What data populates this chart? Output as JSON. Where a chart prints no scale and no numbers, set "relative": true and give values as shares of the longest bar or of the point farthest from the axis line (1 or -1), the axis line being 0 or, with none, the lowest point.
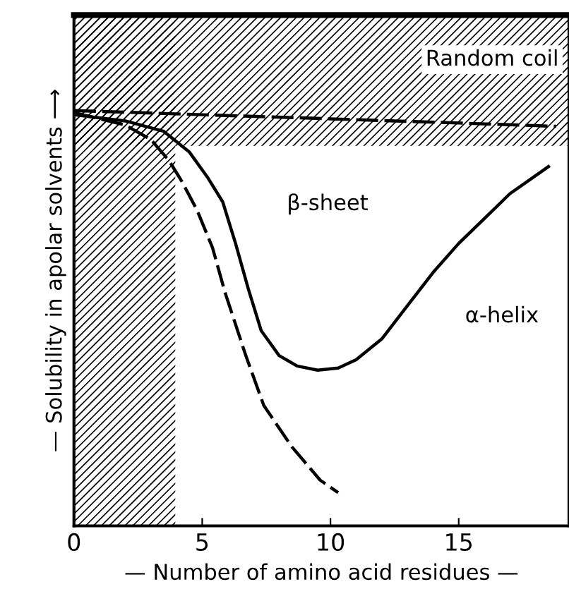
{
  "chart_data": {
    "type": "line",
    "relative": true,
    "xlabel": "— Number of amino acid residues —",
    "ylabel": "— Solubility in apolar solvents ⟶",
    "xlim": [
      0,
      19.3
    ],
    "xticks": [
      0,
      5,
      10,
      15
    ],
    "tick_labels": "x",
    "grid": false,
    "legend": false,
    "marker": "none",
    "series": [
      {
        "color": "#000000",
        "line_style": "dashed",
        "x": [
          0,
          5,
          10,
          15,
          18.8
        ],
        "values": [
          1.0,
          0.99,
          0.98,
          0.97,
          0.962
        ]
      },
      {
        "color": "#000000",
        "line_style": "solid",
        "x": [
          0,
          2,
          3.5,
          4.5,
          5.2,
          5.8,
          6.3,
          6.8,
          7.3,
          8,
          8.7,
          9.5,
          10.3,
          11,
          12,
          13,
          14,
          15,
          16,
          17,
          18.5
        ],
        "values": [
          0.99,
          0.975,
          0.95,
          0.9,
          0.84,
          0.78,
          0.68,
          0.57,
          0.47,
          0.41,
          0.385,
          0.375,
          0.38,
          0.4,
          0.45,
          0.53,
          0.61,
          0.68,
          0.74,
          0.8,
          0.865
        ]
      },
      {
        "color": "#000000",
        "line_style": "dashed",
        "x": [
          0,
          2,
          3,
          3.7,
          4.2,
          4.8,
          5.4,
          5.9,
          6.7,
          7.4,
          8.5,
          9.6,
          10.3
        ],
        "values": [
          0.995,
          0.965,
          0.93,
          0.88,
          0.83,
          0.76,
          0.67,
          0.56,
          0.41,
          0.29,
          0.19,
          0.11,
          0.08
        ]
      }
    ],
    "bands": [
      {
        "axis": "x",
        "from": 0,
        "to": 3.95,
        "color": "#000000"
      },
      {
        "axis": "y",
        "from": 0.915,
        "to": 1.23,
        "label": "Random coil",
        "color": "#000000"
      }
    ],
    "annotations": [
      "β-sheet",
      "α-helix"
    ]
  }
}
